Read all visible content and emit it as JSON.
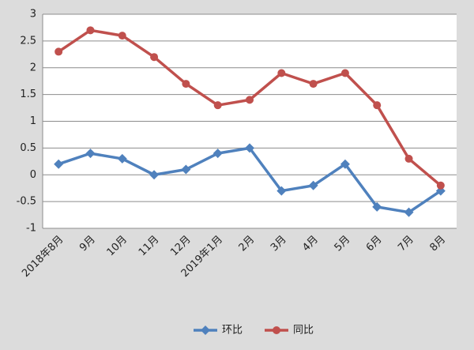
{
  "chart_data": {
    "type": "line",
    "categories": [
      "2018年8月",
      "9月",
      "10月",
      "11月",
      "12月",
      "2019年1月",
      "2月",
      "3月",
      "4月",
      "5月",
      "6月",
      "7月",
      "8月"
    ],
    "series": [
      {
        "name": "环比",
        "color": "#4f81bd",
        "marker": "diamond",
        "values": [
          0.2,
          0.4,
          0.3,
          0,
          0.1,
          0.4,
          0.5,
          -0.3,
          -0.2,
          0.2,
          -0.6,
          -0.7,
          -0.3
        ]
      },
      {
        "name": "同比",
        "color": "#c0504d",
        "marker": "circle",
        "values": [
          2.3,
          2.7,
          2.6,
          2.2,
          1.7,
          1.3,
          1.4,
          1.9,
          1.7,
          1.9,
          1.3,
          0.3,
          -0.2
        ]
      }
    ],
    "ylim": [
      -1,
      3
    ],
    "yticks": [
      -1,
      -0.5,
      0,
      0.5,
      1,
      1.5,
      2,
      2.5,
      3
    ],
    "grid": true,
    "legend": "bottom"
  }
}
